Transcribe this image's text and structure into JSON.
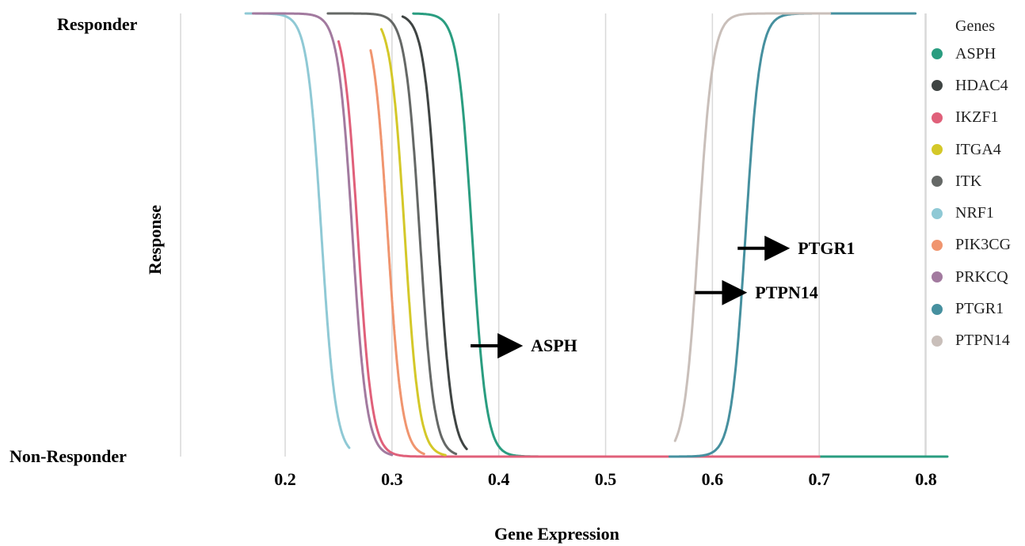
{
  "chart_data": {
    "type": "line",
    "xlabel": "Gene Expression",
    "ylabel": "Response",
    "y_categories": [
      "Non-Responder",
      "Responder"
    ],
    "xlim": [
      0.15,
      0.82
    ],
    "x_ticks": [
      "0.2",
      "0.3",
      "0.4",
      "0.5",
      "0.6",
      "0.7",
      "0.8"
    ],
    "grid": "vertical",
    "legend": {
      "title": "Genes",
      "placement": "right"
    },
    "series": [
      {
        "name": "ASPH",
        "color": "#2a9d80",
        "x_start": 0.32,
        "x_end": 0.82,
        "midpoint": 0.375,
        "direction": "decreasing"
      },
      {
        "name": "HDAC4",
        "color": "#3f4443",
        "x_start": 0.31,
        "x_end": 0.37,
        "midpoint": 0.343,
        "direction": "decreasing"
      },
      {
        "name": "IKZF1",
        "color": "#e0607a",
        "x_start": 0.25,
        "x_end": 0.7,
        "midpoint": 0.268,
        "direction": "decreasing"
      },
      {
        "name": "ITGA4",
        "color": "#d4c829",
        "x_start": 0.29,
        "x_end": 0.35,
        "midpoint": 0.312,
        "direction": "decreasing"
      },
      {
        "name": "ITK",
        "color": "#656866",
        "x_start": 0.24,
        "x_end": 0.36,
        "midpoint": 0.326,
        "direction": "decreasing"
      },
      {
        "name": "NRF1",
        "color": "#8fc9d5",
        "x_start": 0.163,
        "x_end": 0.26,
        "midpoint": 0.234,
        "direction": "decreasing"
      },
      {
        "name": "PIK3CG",
        "color": "#f0956f",
        "x_start": 0.28,
        "x_end": 0.33,
        "midpoint": 0.296,
        "direction": "decreasing"
      },
      {
        "name": "PRKCQ",
        "color": "#a27a9f",
        "x_start": 0.17,
        "x_end": 0.3,
        "midpoint": 0.263,
        "direction": "decreasing"
      },
      {
        "name": "PTGR1",
        "color": "#46909f",
        "x_start": 0.56,
        "x_end": 0.79,
        "midpoint": 0.631,
        "direction": "increasing"
      },
      {
        "name": "PTPN14",
        "color": "#c9bfba",
        "x_start": 0.565,
        "x_end": 0.71,
        "midpoint": 0.587,
        "direction": "increasing"
      }
    ],
    "annotations": [
      {
        "text": "ASPH",
        "x": 0.43,
        "y": 0.25
      },
      {
        "text": "PTGR1",
        "x": 0.68,
        "y": 0.47
      },
      {
        "text": "PTPN14",
        "x": 0.64,
        "y": 0.37
      }
    ]
  }
}
